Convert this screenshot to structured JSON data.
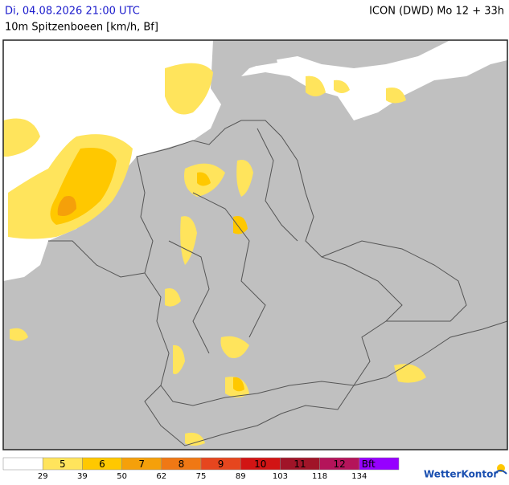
{
  "header": {
    "date": "Di, 04.08.2026 21:00 UTC",
    "model": "ICON (DWD) Mo 12 + 33h",
    "subtitle": "10m Spitzenboeen [km/h, Bf]"
  },
  "legend": {
    "classes": [
      {
        "color": "#ffffff"
      },
      {
        "label": "5",
        "color": "#ffe45c"
      },
      {
        "label": "6",
        "color": "#ffc800"
      },
      {
        "label": "7",
        "color": "#f5a00a"
      },
      {
        "label": "8",
        "color": "#f07814"
      },
      {
        "label": "9",
        "color": "#e6461e"
      },
      {
        "label": "10",
        "color": "#d21414"
      },
      {
        "label": "11",
        "color": "#a01428"
      },
      {
        "label": "12",
        "color": "#b4145a"
      },
      {
        "label": "Bft",
        "color": "#9600ff"
      }
    ],
    "thresholds": [
      29,
      39,
      50,
      62,
      75,
      89,
      103,
      118,
      134
    ]
  },
  "logo": "WetterKontor"
}
